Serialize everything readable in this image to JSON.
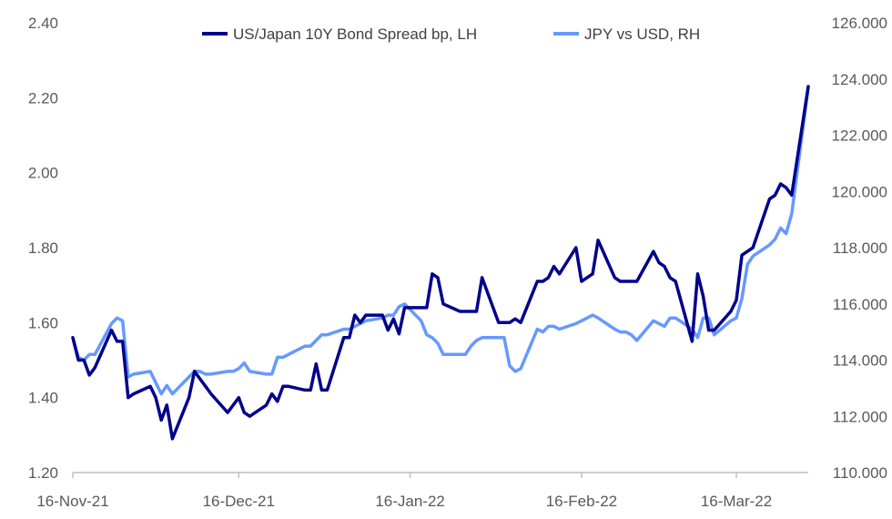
{
  "chart_data": {
    "type": "line",
    "x_tick_labels": [
      "16-Nov-21",
      "16-Dec-21",
      "16-Jan-22",
      "16-Feb-22",
      "16-Mar-22"
    ],
    "x_tick_days": [
      0,
      30,
      61,
      92,
      120
    ],
    "x_range_days": [
      0,
      133
    ],
    "y_left": {
      "ticks": [
        "1.20",
        "1.40",
        "1.60",
        "1.80",
        "2.00",
        "2.20",
        "2.40"
      ],
      "range": [
        1.2,
        2.4
      ]
    },
    "y_right": {
      "ticks": [
        "110.000",
        "112.000",
        "114.000",
        "116.000",
        "118.000",
        "120.000",
        "122.000",
        "124.000",
        "126.000"
      ],
      "range": [
        110,
        126
      ]
    },
    "legend_position": "top-center",
    "series": [
      {
        "name": "US/Japan 10Y Bond Spread bp, LH",
        "axis": "left",
        "color": "#00008B",
        "x": [
          0,
          1,
          2,
          3,
          4,
          7,
          8,
          9,
          10,
          11,
          14,
          15,
          16,
          17,
          18,
          21,
          22,
          23,
          24,
          25,
          28,
          29,
          30,
          31,
          32,
          35,
          36,
          37,
          38,
          39,
          42,
          43,
          44,
          45,
          46,
          49,
          50,
          51,
          52,
          53,
          56,
          57,
          58,
          59,
          60,
          63,
          64,
          65,
          66,
          67,
          70,
          71,
          72,
          73,
          74,
          77,
          78,
          79,
          80,
          81,
          84,
          85,
          86,
          87,
          88,
          91,
          92,
          93,
          94,
          95,
          98,
          99,
          100,
          101,
          102,
          105,
          106,
          107,
          108,
          109,
          112,
          113,
          114,
          115,
          116,
          119,
          120,
          121,
          122,
          123,
          126,
          127,
          128,
          129,
          130,
          133
        ],
        "values": [
          1.56,
          1.5,
          1.5,
          1.46,
          1.48,
          1.58,
          1.55,
          1.55,
          1.4,
          1.41,
          1.43,
          1.4,
          1.34,
          1.38,
          1.29,
          1.4,
          1.47,
          1.45,
          1.43,
          1.41,
          1.36,
          1.38,
          1.4,
          1.36,
          1.35,
          1.38,
          1.41,
          1.39,
          1.43,
          1.43,
          1.42,
          1.42,
          1.49,
          1.42,
          1.42,
          1.56,
          1.56,
          1.62,
          1.6,
          1.62,
          1.62,
          1.58,
          1.61,
          1.57,
          1.64,
          1.64,
          1.64,
          1.73,
          1.72,
          1.65,
          1.63,
          1.63,
          1.63,
          1.63,
          1.72,
          1.6,
          1.6,
          1.6,
          1.61,
          1.6,
          1.71,
          1.71,
          1.72,
          1.75,
          1.73,
          1.8,
          1.71,
          1.72,
          1.73,
          1.82,
          1.72,
          1.71,
          1.71,
          1.71,
          1.71,
          1.79,
          1.76,
          1.75,
          1.72,
          1.71,
          1.55,
          1.73,
          1.67,
          1.58,
          1.58,
          1.63,
          1.66,
          1.78,
          1.79,
          1.8,
          1.93,
          1.94,
          1.97,
          1.96,
          1.94,
          2.23
        ]
      },
      {
        "name": "JPY vs USD, RH",
        "axis": "right",
        "color": "#6699FF",
        "x": [
          0,
          1,
          2,
          3,
          4,
          7,
          8,
          9,
          10,
          11,
          14,
          15,
          16,
          17,
          18,
          21,
          22,
          23,
          24,
          25,
          28,
          29,
          30,
          31,
          32,
          35,
          36,
          37,
          38,
          39,
          42,
          43,
          44,
          45,
          46,
          49,
          50,
          51,
          52,
          53,
          56,
          57,
          58,
          59,
          60,
          63,
          64,
          65,
          66,
          67,
          70,
          71,
          72,
          73,
          74,
          77,
          78,
          79,
          80,
          81,
          84,
          85,
          86,
          87,
          88,
          91,
          92,
          93,
          94,
          95,
          98,
          99,
          100,
          101,
          102,
          105,
          106,
          107,
          108,
          109,
          112,
          113,
          114,
          115,
          116,
          119,
          120,
          121,
          122,
          123,
          126,
          127,
          128,
          129,
          130,
          133
        ],
        "values": [
          114.8,
          114.1,
          114.0,
          114.2,
          114.2,
          115.3,
          115.5,
          115.4,
          113.4,
          113.5,
          113.6,
          113.2,
          112.8,
          113.1,
          112.8,
          113.4,
          113.6,
          113.6,
          113.5,
          113.5,
          113.6,
          113.6,
          113.7,
          113.9,
          113.6,
          113.5,
          113.5,
          114.1,
          114.1,
          114.2,
          114.5,
          114.5,
          114.7,
          114.9,
          114.9,
          115.1,
          115.1,
          115.2,
          115.3,
          115.4,
          115.5,
          115.6,
          115.6,
          115.9,
          116.0,
          115.4,
          114.9,
          114.8,
          114.6,
          114.2,
          114.2,
          114.2,
          114.5,
          114.7,
          114.8,
          114.8,
          114.8,
          113.8,
          113.6,
          113.7,
          115.1,
          115.0,
          115.2,
          115.2,
          115.1,
          115.3,
          115.4,
          115.5,
          115.6,
          115.5,
          115.1,
          115.0,
          115.0,
          114.9,
          114.7,
          115.4,
          115.3,
          115.2,
          115.5,
          115.5,
          115.1,
          114.8,
          115.5,
          115.5,
          114.9,
          115.4,
          115.5,
          116.2,
          117.4,
          117.7,
          118.1,
          118.3,
          118.7,
          118.5,
          119.2,
          123.7
        ]
      }
    ]
  }
}
